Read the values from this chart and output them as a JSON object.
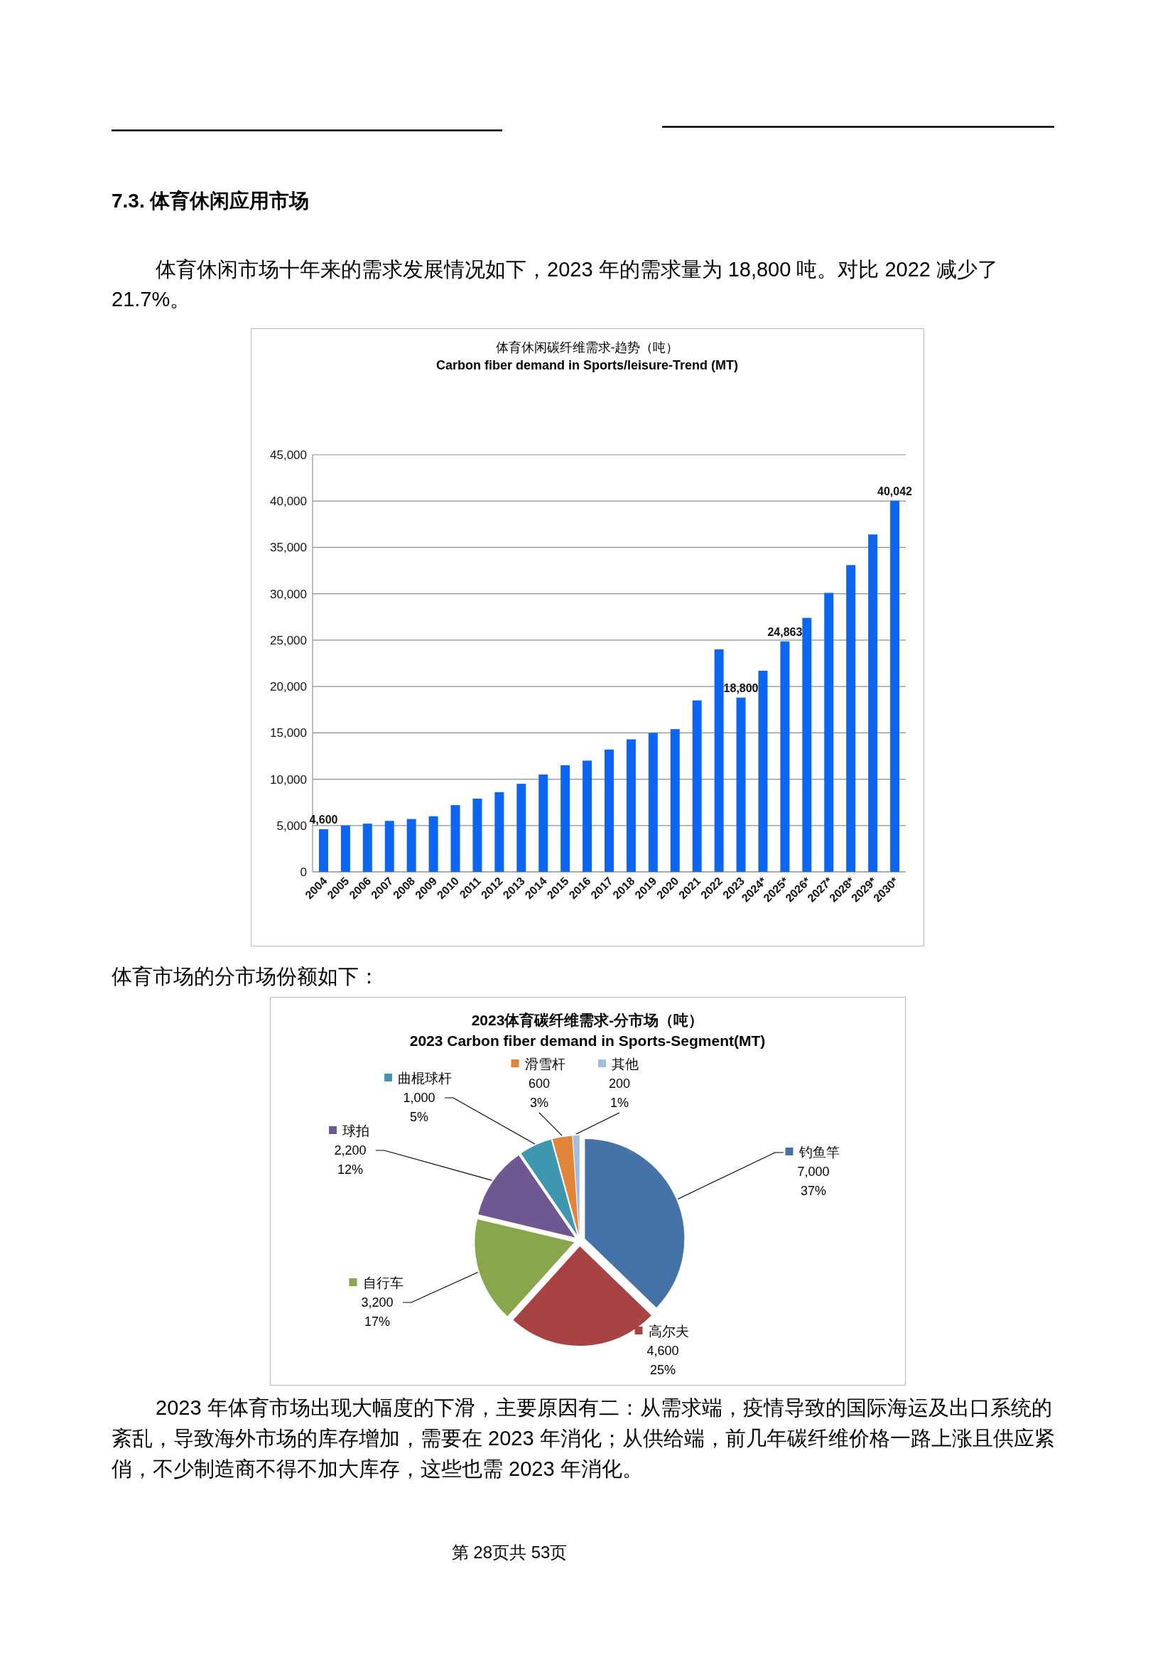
{
  "chart_data": [
    {
      "type": "bar",
      "title": "体育休闲碳纤维需求-趋势（吨）",
      "subtitle": "Carbon fiber demand in Sports/leisure-Trend (MT)",
      "categories": [
        "2004",
        "2005",
        "2006",
        "2007",
        "2008",
        "2009",
        "2010",
        "2011",
        "2012",
        "2013",
        "2014",
        "2015",
        "2016",
        "2017",
        "2018",
        "2019",
        "2020",
        "2021",
        "2022",
        "2023",
        "2024*",
        "2025*",
        "2026*",
        "2027*",
        "2028*",
        "2029*",
        "2030*"
      ],
      "values": [
        4600,
        5000,
        5200,
        5500,
        5700,
        6000,
        7200,
        7900,
        8600,
        9500,
        10500,
        11500,
        12000,
        13200,
        14300,
        15000,
        15400,
        18500,
        24000,
        18800,
        21700,
        24863,
        27400,
        30100,
        33100,
        36400,
        40042
      ],
      "color": "#0d66f2",
      "value_labels": [
        "4,600",
        null,
        null,
        null,
        null,
        null,
        null,
        null,
        null,
        null,
        null,
        null,
        null,
        null,
        null,
        null,
        null,
        null,
        null,
        "18,800",
        null,
        "24,863",
        null,
        null,
        null,
        null,
        "40,042"
      ],
      "ylim": [
        0,
        45000
      ],
      "yticks": [
        0,
        {
          "value": 5000,
          "label": "5,000"
        },
        {
          "value": 10000,
          "label": "10,000"
        },
        {
          "value": 15000,
          "label": "15,000"
        },
        {
          "value": 20000,
          "label": "20,000"
        },
        {
          "value": 25000,
          "label": "25,000"
        },
        {
          "value": 30000,
          "label": "30,000"
        },
        {
          "value": 35000,
          "label": "35,000"
        },
        {
          "value": 40000,
          "label": "40,000"
        },
        {
          "value": 45000,
          "label": "45,000"
        }
      ],
      "grid": "y",
      "annotations": [
        "7.3. 体育休闲应用市场",
        "体育休闲市场十年来的需求发展情况如下，2023 年的需求量为 18,800 吨。对比 2022 减少了 21.7%。"
      ]
    },
    {
      "type": "pie",
      "title": "2023体育碳纤维需求-分市场（吨）",
      "subtitle": "2023 Carbon fiber demand in Sports-Segment(MT)",
      "categories": [
        "钓鱼竿",
        "高尔夫",
        "自行车",
        "球拍",
        "曲棍球杆",
        "滑雪杆",
        "其他"
      ],
      "values": [
        7000,
        4600,
        3200,
        2200,
        1000,
        600,
        200
      ],
      "colors": [
        "#4573a7",
        "#a84343",
        "#88a64a",
        "#6f5791",
        "#3e97ae",
        "#e0853a",
        "#a4bce0"
      ],
      "value_labels": [
        "7,000\n37%",
        "4,600\n25%",
        "3,200\n17%",
        "2,200\n12%",
        "1,000\n5%",
        "600\n3%",
        "200\n1%"
      ],
      "legend": "top",
      "annotations": [
        "体育市场的分市场份额如下：",
        "2023 年体育市场出现大幅度的下滑，主要原因有二：从需求端，疫情导致的国际海运及出口系统的紊乱，导致海外市场的库存增加，需要在 2023 年消化；从供给端，前几年碳纤维价格一路上涨且供应紧俏，不少制造商不得不加大库存，这些也需 2023 年消化。",
        "第 28页共 53页"
      ]
    }
  ]
}
